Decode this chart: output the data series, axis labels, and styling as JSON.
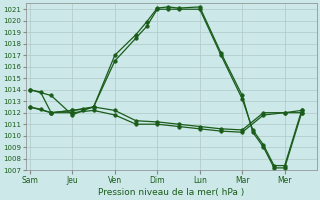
{
  "xlabel": "Pression niveau de la mer( hPa )",
  "background_color": "#cce8e8",
  "grid_color": "#b0c8c8",
  "line_color": "#1a5c1a",
  "ylim": [
    1007,
    1021.5
  ],
  "yticks": [
    1007,
    1008,
    1009,
    1010,
    1011,
    1012,
    1013,
    1014,
    1015,
    1016,
    1017,
    1018,
    1019,
    1020,
    1021
  ],
  "x_labels": [
    "Sam",
    "Jeu",
    "Ven",
    "Dim",
    "Lun",
    "Mar",
    "Mer"
  ],
  "x_tick_pos": [
    0,
    2,
    4,
    6,
    8,
    10,
    12
  ],
  "xlim": [
    -0.2,
    13.5
  ],
  "line1_x": [
    0,
    1,
    2,
    2.5,
    3,
    4,
    5,
    5.5,
    6,
    6.5,
    7,
    8,
    9,
    10,
    10.5,
    11,
    11.5,
    12,
    12.8
  ],
  "line1_y": [
    1014,
    1013.5,
    1011.8,
    1012.2,
    1012.5,
    1017.0,
    1018.8,
    1019.9,
    1021.1,
    1021.2,
    1021.1,
    1021.2,
    1017.2,
    1013.5,
    1010.3,
    1009.0,
    1007.2,
    1007.2,
    1012.0
  ],
  "line2_x": [
    0,
    1,
    2,
    2.5,
    3,
    4,
    5,
    5.5,
    6,
    6.5,
    7,
    8,
    9,
    10,
    10.5,
    11,
    11.5,
    12,
    12.8
  ],
  "line2_y": [
    1012.5,
    1012.0,
    1012.2,
    1012.3,
    1012.5,
    1016.5,
    1018.5,
    1019.5,
    1021.0,
    1021.0,
    1021.0,
    1021.0,
    1017.0,
    1013.2,
    1010.5,
    1009.2,
    1007.4,
    1007.4,
    1012.2
  ],
  "line3_x": [
    0,
    0.5,
    1,
    2,
    3,
    4,
    5,
    6,
    7,
    8,
    9,
    10,
    11,
    12,
    12.8
  ],
  "line3_y": [
    1014.0,
    1013.8,
    1012.0,
    1012.2,
    1012.5,
    1012.2,
    1011.3,
    1011.2,
    1011.0,
    1010.8,
    1010.6,
    1010.5,
    1012.0,
    1012.0,
    1012.2
  ],
  "line4_x": [
    0,
    0.5,
    1,
    2,
    3,
    4,
    5,
    6,
    7,
    8,
    9,
    10,
    11,
    12,
    12.8
  ],
  "line4_y": [
    1012.5,
    1012.3,
    1012.0,
    1012.0,
    1012.2,
    1011.8,
    1011.0,
    1011.0,
    1010.8,
    1010.6,
    1010.4,
    1010.3,
    1011.8,
    1012.0,
    1012.0
  ]
}
